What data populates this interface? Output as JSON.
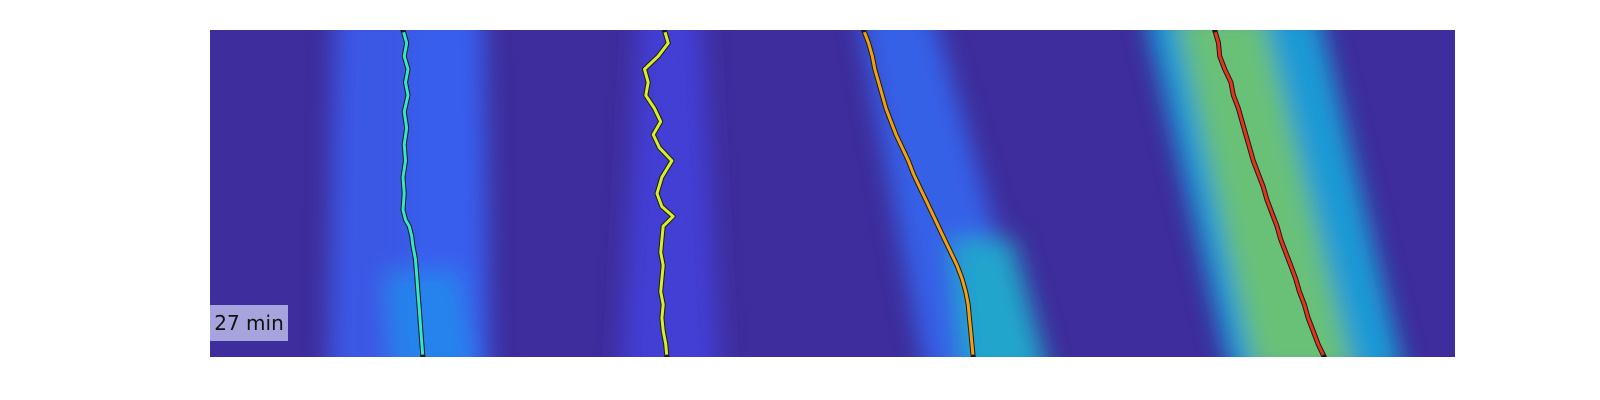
{
  "time_label": "27 min",
  "chart_data": {
    "type": "heatmap",
    "colormap": "parula",
    "grid": false,
    "background_color": "#3e2d9c",
    "intensity_bands": [
      {
        "y_top": 0.0,
        "y_bottom": 1.0,
        "x_top": 0.19,
        "x_bottom": 0.19,
        "width_top": 0.06,
        "width_bottom": 0.06,
        "intensity": 0.28
      },
      {
        "y_top": 0.0,
        "y_bottom": 1.0,
        "x_top": 0.16,
        "x_bottom": 0.16,
        "width_top": 0.12,
        "width_bottom": 0.13,
        "intensity": 0.22
      },
      {
        "y_top": 0.8,
        "y_bottom": 1.0,
        "x_top": 0.17,
        "x_bottom": 0.18,
        "width_top": 0.06,
        "width_bottom": 0.07,
        "intensity": 0.35
      },
      {
        "y_top": 0.0,
        "y_bottom": 1.0,
        "x_top": 0.37,
        "x_bottom": 0.37,
        "width_top": 0.05,
        "width_bottom": 0.08,
        "intensity": 0.12
      },
      {
        "y_top": 0.0,
        "y_bottom": 1.0,
        "x_top": 0.55,
        "x_bottom": 0.62,
        "width_top": 0.06,
        "width_bottom": 0.09,
        "intensity": 0.25
      },
      {
        "y_top": 0.7,
        "y_bottom": 1.0,
        "x_top": 0.62,
        "x_bottom": 0.64,
        "width_top": 0.05,
        "width_bottom": 0.07,
        "intensity": 0.5
      },
      {
        "y_top": 0.0,
        "y_bottom": 1.0,
        "x_top": 0.82,
        "x_bottom": 0.89,
        "width_top": 0.14,
        "width_bottom": 0.14,
        "intensity": 0.45
      },
      {
        "y_top": 0.0,
        "y_bottom": 1.0,
        "x_top": 0.81,
        "x_bottom": 0.88,
        "width_top": 0.07,
        "width_bottom": 0.08,
        "intensity": 0.7
      }
    ],
    "tracks": [
      {
        "color": "#33e6cc",
        "points": [
          [
            0.155,
            0.0
          ],
          [
            0.158,
            0.04
          ],
          [
            0.156,
            0.08
          ],
          [
            0.159,
            0.12
          ],
          [
            0.157,
            0.16
          ],
          [
            0.159,
            0.2
          ],
          [
            0.156,
            0.25
          ],
          [
            0.158,
            0.3
          ],
          [
            0.156,
            0.35
          ],
          [
            0.157,
            0.4
          ],
          [
            0.155,
            0.45
          ],
          [
            0.156,
            0.5
          ],
          [
            0.155,
            0.55
          ],
          [
            0.157,
            0.58
          ],
          [
            0.16,
            0.6
          ],
          [
            0.162,
            0.63
          ],
          [
            0.163,
            0.66
          ],
          [
            0.165,
            0.7
          ],
          [
            0.166,
            0.75
          ],
          [
            0.167,
            0.8
          ],
          [
            0.168,
            0.85
          ],
          [
            0.169,
            0.9
          ],
          [
            0.17,
            0.95
          ],
          [
            0.171,
            1.0
          ]
        ]
      },
      {
        "color": "#d9ee2a",
        "points": [
          [
            0.365,
            0.0
          ],
          [
            0.368,
            0.04
          ],
          [
            0.36,
            0.08
          ],
          [
            0.349,
            0.12
          ],
          [
            0.352,
            0.16
          ],
          [
            0.35,
            0.2
          ],
          [
            0.357,
            0.24
          ],
          [
            0.362,
            0.28
          ],
          [
            0.356,
            0.32
          ],
          [
            0.361,
            0.36
          ],
          [
            0.371,
            0.4
          ],
          [
            0.363,
            0.45
          ],
          [
            0.359,
            0.5
          ],
          [
            0.363,
            0.54
          ],
          [
            0.372,
            0.57
          ],
          [
            0.364,
            0.6
          ],
          [
            0.363,
            0.64
          ],
          [
            0.362,
            0.68
          ],
          [
            0.364,
            0.72
          ],
          [
            0.363,
            0.76
          ],
          [
            0.362,
            0.8
          ],
          [
            0.364,
            0.84
          ],
          [
            0.363,
            0.88
          ],
          [
            0.364,
            0.92
          ],
          [
            0.366,
            0.96
          ],
          [
            0.367,
            1.0
          ]
        ]
      },
      {
        "color": "#f0a010",
        "points": [
          [
            0.525,
            0.0
          ],
          [
            0.529,
            0.04
          ],
          [
            0.532,
            0.08
          ],
          [
            0.534,
            0.12
          ],
          [
            0.537,
            0.16
          ],
          [
            0.54,
            0.2
          ],
          [
            0.543,
            0.24
          ],
          [
            0.547,
            0.28
          ],
          [
            0.551,
            0.32
          ],
          [
            0.556,
            0.36
          ],
          [
            0.561,
            0.4
          ],
          [
            0.565,
            0.44
          ],
          [
            0.57,
            0.48
          ],
          [
            0.575,
            0.52
          ],
          [
            0.58,
            0.56
          ],
          [
            0.585,
            0.6
          ],
          [
            0.59,
            0.64
          ],
          [
            0.595,
            0.68
          ],
          [
            0.6,
            0.72
          ],
          [
            0.604,
            0.76
          ],
          [
            0.607,
            0.8
          ],
          [
            0.609,
            0.84
          ],
          [
            0.61,
            0.88
          ],
          [
            0.611,
            0.92
          ],
          [
            0.612,
            0.96
          ],
          [
            0.613,
            1.0
          ]
        ]
      },
      {
        "color": "#e5341a",
        "points": [
          [
            0.807,
            0.0
          ],
          [
            0.81,
            0.04
          ],
          [
            0.811,
            0.08
          ],
          [
            0.815,
            0.12
          ],
          [
            0.82,
            0.16
          ],
          [
            0.822,
            0.2
          ],
          [
            0.826,
            0.24
          ],
          [
            0.829,
            0.28
          ],
          [
            0.832,
            0.32
          ],
          [
            0.835,
            0.36
          ],
          [
            0.838,
            0.4
          ],
          [
            0.842,
            0.44
          ],
          [
            0.846,
            0.48
          ],
          [
            0.849,
            0.52
          ],
          [
            0.853,
            0.56
          ],
          [
            0.857,
            0.6
          ],
          [
            0.86,
            0.64
          ],
          [
            0.864,
            0.68
          ],
          [
            0.868,
            0.72
          ],
          [
            0.872,
            0.76
          ],
          [
            0.875,
            0.8
          ],
          [
            0.879,
            0.84
          ],
          [
            0.882,
            0.88
          ],
          [
            0.886,
            0.92
          ],
          [
            0.89,
            0.96
          ],
          [
            0.895,
            1.0
          ]
        ]
      }
    ]
  }
}
